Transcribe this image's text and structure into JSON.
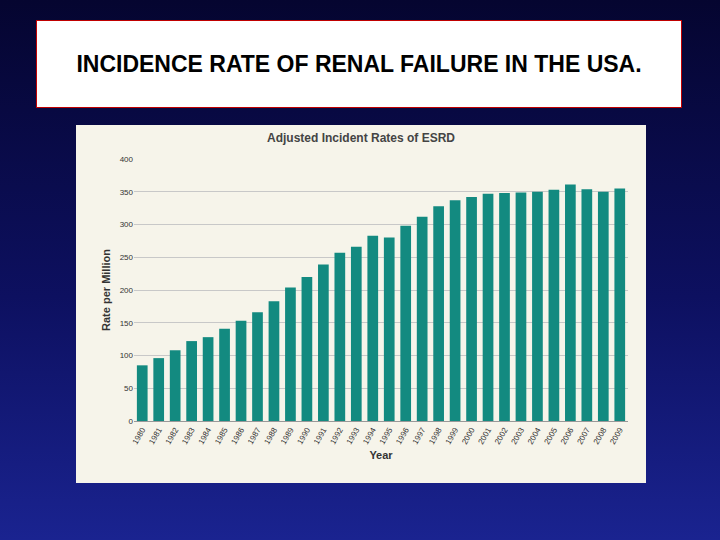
{
  "header": {
    "title": "INCIDENCE RATE OF RENAL FAILURE IN THE USA."
  },
  "chart_data": {
    "type": "bar",
    "title": "Adjusted Incident Rates of ESRD",
    "x_label": "Year",
    "y_label": "Rate per Million",
    "categories": [
      "1980",
      "1981",
      "1982",
      "1983",
      "1984",
      "1985",
      "1986",
      "1987",
      "1988",
      "1989",
      "1990",
      "1991",
      "1992",
      "1993",
      "1994",
      "1995",
      "1996",
      "1997",
      "1998",
      "1999",
      "2000",
      "2001",
      "2002",
      "2003",
      "2004",
      "2005",
      "2006",
      "2007",
      "2008",
      "2009"
    ],
    "values": [
      85,
      96,
      108,
      122,
      128,
      141,
      153,
      166,
      183,
      204,
      220,
      239,
      257,
      266,
      283,
      280,
      298,
      312,
      328,
      337,
      342,
      347,
      348,
      349,
      350,
      353,
      361,
      354,
      350,
      355
    ],
    "color": "#138a80",
    "ylim": [
      0,
      400
    ],
    "yticks": [
      0,
      50,
      100,
      150,
      200,
      250,
      300,
      350,
      400
    ],
    "grid": true
  }
}
